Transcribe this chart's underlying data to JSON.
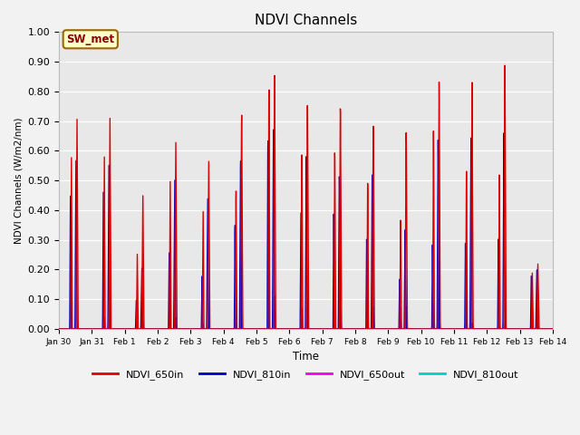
{
  "title": "NDVI Channels",
  "ylabel": "NDVI Channels (W/m2/nm)",
  "xlabel": "Time",
  "ylim": [
    0.0,
    1.0
  ],
  "yticks": [
    0.0,
    0.1,
    0.2,
    0.3,
    0.4,
    0.5,
    0.6,
    0.7,
    0.8,
    0.9,
    1.0
  ],
  "ytick_labels": [
    "0.00",
    "0.10",
    "0.20",
    "0.30",
    "0.40",
    "0.50",
    "0.60",
    "0.70",
    "0.80",
    "0.90",
    "1.00"
  ],
  "xtick_labels": [
    "Jan 30",
    "Jan 31",
    "Feb 1",
    "Feb 2",
    "Feb 3",
    "Feb 4",
    "Feb 5",
    "Feb 6",
    "Feb 7",
    "Feb 8",
    "Feb 9",
    "Feb 10",
    "Feb 11",
    "Feb 12",
    "Feb 13",
    "Feb 14"
  ],
  "annotation_text": "SW_met",
  "annotation_bg": "#ffffcc",
  "annotation_border": "#996600",
  "annotation_text_color": "#8b0000",
  "colors": {
    "NDVI_650in": "#dd0000",
    "NDVI_810in": "#0000bb",
    "NDVI_650out": "#ee00ee",
    "NDVI_810out": "#00cccc"
  },
  "fig_bg": "#f2f2f2",
  "plot_bg": "#e8e8e8",
  "grid_color": "#ffffff",
  "n_days": 15,
  "peaks_650in": [
    0.71,
    0.72,
    0.46,
    0.65,
    0.59,
    0.76,
    0.91,
    0.81,
    0.79,
    0.72,
    0.69,
    0.86,
    0.85,
    0.9,
    0.22
  ],
  "peaks_810in": [
    0.57,
    0.56,
    0.21,
    0.52,
    0.46,
    0.6,
    0.72,
    0.63,
    0.55,
    0.55,
    0.35,
    0.66,
    0.66,
    0.67,
    0.2
  ],
  "peaks_650out": [
    0.0,
    0.04,
    0.03,
    0.04,
    0.02,
    0.04,
    0.07,
    0.08,
    0.07,
    0.05,
    0.08,
    0.09,
    0.02,
    0.01,
    0.01
  ],
  "peaks_810out": [
    0.0,
    0.09,
    0.03,
    0.04,
    0.02,
    0.09,
    0.12,
    0.1,
    0.07,
    0.08,
    0.08,
    0.11,
    0.02,
    0.02,
    0.01
  ],
  "sub_peaks_650in": [
    0.58,
    0.59,
    0.26,
    0.52,
    0.42,
    0.5,
    0.88,
    0.65,
    0.65,
    0.53,
    0.39,
    0.7,
    0.55,
    0.53,
    0.19
  ],
  "sub_peaks_810in": [
    0.45,
    0.47,
    0.1,
    0.27,
    0.19,
    0.38,
    0.7,
    0.44,
    0.43,
    0.33,
    0.18,
    0.3,
    0.3,
    0.31,
    0.18
  ],
  "sub_peaks_810out": [
    0.0,
    0.04,
    0.02,
    0.02,
    0.01,
    0.05,
    0.1,
    0.08,
    0.05,
    0.06,
    0.05,
    0.08,
    0.01,
    0.01,
    0.01
  ]
}
